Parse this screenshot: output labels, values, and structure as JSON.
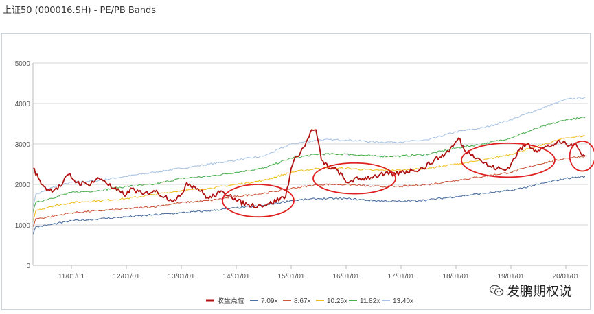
{
  "header": {
    "title": "上证50 (000016.SH) - PE/PB Bands"
  },
  "watermark": {
    "text": "发鹏期权说",
    "icon": "wechat-icon"
  },
  "chart_data": {
    "type": "line",
    "title": "上证50 (000016.SH) - PE/PB Bands",
    "xlabel": "",
    "ylabel": "",
    "ylim": [
      0,
      5000
    ],
    "yticks": [
      0,
      1000,
      2000,
      3000,
      4000,
      5000
    ],
    "xlim": [
      2010.3,
      2020.4
    ],
    "xticks": [
      {
        "x": 2011,
        "label": "11/01/01"
      },
      {
        "x": 2012,
        "label": "12/01/01"
      },
      {
        "x": 2013,
        "label": "13/01/01"
      },
      {
        "x": 2014,
        "label": "14/01/01"
      },
      {
        "x": 2015,
        "label": "15/01/01"
      },
      {
        "x": 2016,
        "label": "16/01/01"
      },
      {
        "x": 2017,
        "label": "17/01/01"
      },
      {
        "x": 2018,
        "label": "18/01/01"
      },
      {
        "x": 2019,
        "label": "19/01/01"
      },
      {
        "x": 2020,
        "label": "20/01/01"
      }
    ],
    "grid": true,
    "legend_position": "bottom",
    "series": [
      {
        "name": "收盘点位",
        "color": "#b01212",
        "points": [
          [
            2010.3,
            2400
          ],
          [
            2010.4,
            2150
          ],
          [
            2010.5,
            1950
          ],
          [
            2010.6,
            1850
          ],
          [
            2010.8,
            1950
          ],
          [
            2010.95,
            2250
          ],
          [
            2011.1,
            2050
          ],
          [
            2011.3,
            2000
          ],
          [
            2011.5,
            2150
          ],
          [
            2011.6,
            2100
          ],
          [
            2011.75,
            1900
          ],
          [
            2011.9,
            1800
          ],
          [
            2012.0,
            1750
          ],
          [
            2012.1,
            1900
          ],
          [
            2012.3,
            1750
          ],
          [
            2012.5,
            1850
          ],
          [
            2012.7,
            1700
          ],
          [
            2012.9,
            1600
          ],
          [
            2013.0,
            1750
          ],
          [
            2013.1,
            2050
          ],
          [
            2013.3,
            1900
          ],
          [
            2013.5,
            1650
          ],
          [
            2013.7,
            1800
          ],
          [
            2013.9,
            1750
          ],
          [
            2014.0,
            1600
          ],
          [
            2014.2,
            1500
          ],
          [
            2014.4,
            1480
          ],
          [
            2014.6,
            1520
          ],
          [
            2014.8,
            1650
          ],
          [
            2014.9,
            1700
          ],
          [
            2015.0,
            2400
          ],
          [
            2015.1,
            2700
          ],
          [
            2015.25,
            2950
          ],
          [
            2015.35,
            3300
          ],
          [
            2015.45,
            3350
          ],
          [
            2015.55,
            2600
          ],
          [
            2015.7,
            2400
          ],
          [
            2015.85,
            2350
          ],
          [
            2016.0,
            2050
          ],
          [
            2016.1,
            2100
          ],
          [
            2016.3,
            2150
          ],
          [
            2016.5,
            2200
          ],
          [
            2016.7,
            2250
          ],
          [
            2016.9,
            2250
          ],
          [
            2017.0,
            2300
          ],
          [
            2017.2,
            2350
          ],
          [
            2017.4,
            2400
          ],
          [
            2017.6,
            2600
          ],
          [
            2017.8,
            2750
          ],
          [
            2017.95,
            2950
          ],
          [
            2018.05,
            3150
          ],
          [
            2018.15,
            2850
          ],
          [
            2018.3,
            2750
          ],
          [
            2018.45,
            2600
          ],
          [
            2018.6,
            2450
          ],
          [
            2018.75,
            2400
          ],
          [
            2018.9,
            2350
          ],
          [
            2019.0,
            2500
          ],
          [
            2019.15,
            2850
          ],
          [
            2019.3,
            3000
          ],
          [
            2019.45,
            2850
          ],
          [
            2019.6,
            2900
          ],
          [
            2019.8,
            3000
          ],
          [
            2019.95,
            3050
          ],
          [
            2020.05,
            2950
          ],
          [
            2020.15,
            3000
          ],
          [
            2020.25,
            2850
          ],
          [
            2020.35,
            2700
          ]
        ]
      },
      {
        "name": "7.09x",
        "color": "#4a6fa0",
        "points": [
          [
            2010.3,
            750
          ],
          [
            2010.35,
            950
          ],
          [
            2010.6,
            1000
          ],
          [
            2011.0,
            1100
          ],
          [
            2011.5,
            1150
          ],
          [
            2012.0,
            1200
          ],
          [
            2012.5,
            1250
          ],
          [
            2013.0,
            1300
          ],
          [
            2013.5,
            1350
          ],
          [
            2014.0,
            1420
          ],
          [
            2014.5,
            1480
          ],
          [
            2015.0,
            1600
          ],
          [
            2015.5,
            1650
          ],
          [
            2016.0,
            1650
          ],
          [
            2016.5,
            1600
          ],
          [
            2017.0,
            1580
          ],
          [
            2017.5,
            1620
          ],
          [
            2018.0,
            1700
          ],
          [
            2018.5,
            1780
          ],
          [
            2019.0,
            1850
          ],
          [
            2019.5,
            2000
          ],
          [
            2020.0,
            2150
          ],
          [
            2020.35,
            2200
          ]
        ]
      },
      {
        "name": "8.67x",
        "color": "#c9573c",
        "points": [
          [
            2010.3,
            950
          ],
          [
            2010.35,
            1150
          ],
          [
            2010.6,
            1200
          ],
          [
            2011.0,
            1300
          ],
          [
            2011.5,
            1350
          ],
          [
            2012.0,
            1400
          ],
          [
            2012.5,
            1450
          ],
          [
            2013.0,
            1550
          ],
          [
            2013.5,
            1600
          ],
          [
            2014.0,
            1700
          ],
          [
            2014.5,
            1780
          ],
          [
            2015.0,
            1900
          ],
          [
            2015.5,
            2000
          ],
          [
            2016.0,
            2000
          ],
          [
            2016.5,
            1950
          ],
          [
            2017.0,
            1950
          ],
          [
            2017.5,
            2000
          ],
          [
            2018.0,
            2100
          ],
          [
            2018.5,
            2200
          ],
          [
            2019.0,
            2300
          ],
          [
            2019.5,
            2500
          ],
          [
            2020.0,
            2650
          ],
          [
            2020.35,
            2700
          ]
        ]
      },
      {
        "name": "10.25x",
        "color": "#f0c020",
        "points": [
          [
            2010.3,
            1100
          ],
          [
            2010.35,
            1350
          ],
          [
            2010.6,
            1450
          ],
          [
            2011.0,
            1550
          ],
          [
            2011.5,
            1600
          ],
          [
            2012.0,
            1650
          ],
          [
            2012.5,
            1750
          ],
          [
            2013.0,
            1850
          ],
          [
            2013.5,
            1900
          ],
          [
            2014.0,
            2000
          ],
          [
            2014.5,
            2100
          ],
          [
            2015.0,
            2300
          ],
          [
            2015.5,
            2400
          ],
          [
            2016.0,
            2400
          ],
          [
            2016.5,
            2350
          ],
          [
            2017.0,
            2350
          ],
          [
            2017.5,
            2400
          ],
          [
            2018.0,
            2500
          ],
          [
            2018.5,
            2600
          ],
          [
            2019.0,
            2750
          ],
          [
            2019.5,
            2950
          ],
          [
            2020.0,
            3150
          ],
          [
            2020.35,
            3200
          ]
        ]
      },
      {
        "name": "11.82x",
        "color": "#4caf50",
        "points": [
          [
            2010.3,
            1300
          ],
          [
            2010.35,
            1550
          ],
          [
            2010.6,
            1650
          ],
          [
            2011.0,
            1800
          ],
          [
            2011.5,
            1850
          ],
          [
            2012.0,
            1950
          ],
          [
            2012.5,
            2000
          ],
          [
            2013.0,
            2150
          ],
          [
            2013.5,
            2200
          ],
          [
            2014.0,
            2300
          ],
          [
            2014.5,
            2400
          ],
          [
            2015.0,
            2650
          ],
          [
            2015.5,
            2750
          ],
          [
            2016.0,
            2750
          ],
          [
            2016.5,
            2700
          ],
          [
            2017.0,
            2700
          ],
          [
            2017.5,
            2750
          ],
          [
            2018.0,
            2900
          ],
          [
            2018.5,
            3000
          ],
          [
            2019.0,
            3150
          ],
          [
            2019.5,
            3400
          ],
          [
            2020.0,
            3600
          ],
          [
            2020.35,
            3650
          ]
        ]
      },
      {
        "name": "13.40x",
        "color": "#a9c4e4",
        "points": [
          [
            2010.3,
            1450
          ],
          [
            2010.35,
            1750
          ],
          [
            2010.6,
            1900
          ],
          [
            2011.0,
            2050
          ],
          [
            2011.5,
            2100
          ],
          [
            2012.0,
            2200
          ],
          [
            2012.5,
            2300
          ],
          [
            2013.0,
            2400
          ],
          [
            2013.5,
            2500
          ],
          [
            2014.0,
            2600
          ],
          [
            2014.5,
            2700
          ],
          [
            2015.0,
            3000
          ],
          [
            2015.5,
            3100
          ],
          [
            2016.0,
            3100
          ],
          [
            2016.5,
            3050
          ],
          [
            2017.0,
            3050
          ],
          [
            2017.5,
            3100
          ],
          [
            2018.0,
            3300
          ],
          [
            2018.5,
            3400
          ],
          [
            2019.0,
            3600
          ],
          [
            2019.5,
            3850
          ],
          [
            2020.0,
            4100
          ],
          [
            2020.35,
            4150
          ]
        ]
      }
    ],
    "annotations": [
      {
        "type": "ellipse",
        "cx": 2014.4,
        "cy": 1600,
        "rx": 0.65,
        "ry": 400,
        "color": "#e02020"
      },
      {
        "type": "ellipse",
        "cx": 2016.15,
        "cy": 2150,
        "rx": 0.75,
        "ry": 380,
        "color": "#e02020"
      },
      {
        "type": "ellipse",
        "cx": 2018.95,
        "cy": 2600,
        "rx": 0.85,
        "ry": 420,
        "color": "#e02020"
      },
      {
        "type": "ellipse",
        "cx": 2020.3,
        "cy": 2700,
        "rx": 0.23,
        "ry": 370,
        "color": "#e02020"
      }
    ]
  }
}
